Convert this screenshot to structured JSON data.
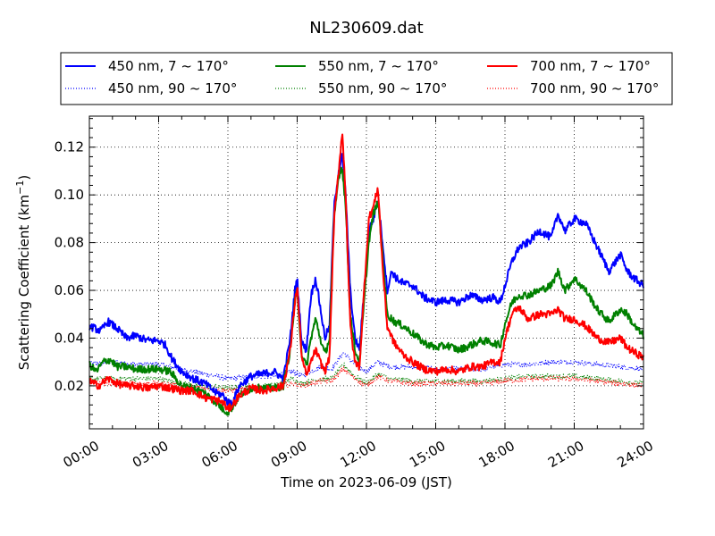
{
  "chart_data": {
    "type": "line",
    "title": "NL230609.dat",
    "xlabel": "Time on 2023-06-09 (JST)",
    "ylabel_main": "Scattering Coefficient (km",
    "ylabel_sup": "−1",
    "ylabel_close": ")",
    "xlim": [
      0,
      24
    ],
    "ylim": [
      0.002,
      0.133
    ],
    "x_ticks": [
      0,
      3,
      6,
      9,
      12,
      15,
      18,
      21,
      24
    ],
    "x_tick_labels": [
      "00:00",
      "03:00",
      "06:00",
      "09:00",
      "12:00",
      "15:00",
      "18:00",
      "21:00",
      "24:00"
    ],
    "y_ticks": [
      0.02,
      0.04,
      0.06,
      0.08,
      0.1,
      0.12
    ],
    "y_tick_labels": [
      "0.02",
      "0.04",
      "0.06",
      "0.08",
      "0.10",
      "0.12"
    ],
    "grid": true,
    "legend_position": "top",
    "series": [
      {
        "name": "450 nm, 7 ~ 170°",
        "color": "#0000ff",
        "style": "solid",
        "x": [
          0,
          0.5,
          0.8,
          1.2,
          1.6,
          2.0,
          2.5,
          3.0,
          3.3,
          3.6,
          4.0,
          4.5,
          5.0,
          5.5,
          5.8,
          6.0,
          6.2,
          6.5,
          7.0,
          7.5,
          8.0,
          8.4,
          8.7,
          8.9,
          9.0,
          9.2,
          9.4,
          9.6,
          9.8,
          10.0,
          10.2,
          10.4,
          10.6,
          10.8,
          10.95,
          11.1,
          11.3,
          11.5,
          11.7,
          11.9,
          12.1,
          12.3,
          12.5,
          12.7,
          12.9,
          13.1,
          13.3,
          13.6,
          14.0,
          14.5,
          15.0,
          15.5,
          16.0,
          16.5,
          17.0,
          17.5,
          17.8,
          18.0,
          18.3,
          18.6,
          19.0,
          19.5,
          20.0,
          20.3,
          20.6,
          21.0,
          21.5,
          22.0,
          22.5,
          23.0,
          23.3,
          23.6,
          24.0
        ],
        "values": [
          0.045,
          0.043,
          0.047,
          0.044,
          0.04,
          0.041,
          0.039,
          0.039,
          0.037,
          0.031,
          0.026,
          0.023,
          0.021,
          0.017,
          0.016,
          0.013,
          0.013,
          0.02,
          0.024,
          0.025,
          0.026,
          0.023,
          0.04,
          0.06,
          0.065,
          0.038,
          0.035,
          0.058,
          0.065,
          0.053,
          0.04,
          0.045,
          0.095,
          0.11,
          0.117,
          0.1,
          0.06,
          0.04,
          0.035,
          0.06,
          0.085,
          0.09,
          0.098,
          0.08,
          0.06,
          0.068,
          0.065,
          0.063,
          0.062,
          0.057,
          0.055,
          0.056,
          0.055,
          0.058,
          0.056,
          0.057,
          0.055,
          0.062,
          0.072,
          0.078,
          0.08,
          0.085,
          0.082,
          0.092,
          0.085,
          0.09,
          0.088,
          0.078,
          0.068,
          0.075,
          0.068,
          0.065,
          0.062
        ]
      },
      {
        "name": "450 nm, 90 ~ 170°",
        "color": "#0000ff",
        "style": "dotted",
        "x": [
          0,
          1,
          2,
          3,
          4,
          5,
          6,
          7,
          8,
          8.8,
          9.2,
          9.6,
          10.0,
          10.5,
          11.0,
          11.5,
          12.0,
          12.5,
          13.0,
          14.0,
          15.0,
          16.0,
          17.0,
          18.0,
          19.0,
          20.0,
          21.0,
          22.0,
          23.0,
          24.0
        ],
        "values": [
          0.029,
          0.03,
          0.029,
          0.029,
          0.027,
          0.025,
          0.023,
          0.024,
          0.024,
          0.026,
          0.024,
          0.026,
          0.028,
          0.027,
          0.034,
          0.029,
          0.026,
          0.03,
          0.028,
          0.028,
          0.027,
          0.027,
          0.027,
          0.029,
          0.029,
          0.03,
          0.03,
          0.029,
          0.028,
          0.027
        ]
      },
      {
        "name": "550 nm, 7 ~ 170°",
        "color": "#008000",
        "style": "solid",
        "x": [
          0,
          0.3,
          0.6,
          0.9,
          1.2,
          1.6,
          2.0,
          2.5,
          3.0,
          3.5,
          4.0,
          4.5,
          5.0,
          5.5,
          5.8,
          6.0,
          6.2,
          6.5,
          7.0,
          7.5,
          8.0,
          8.4,
          8.7,
          8.9,
          9.0,
          9.2,
          9.4,
          9.6,
          9.8,
          10.0,
          10.2,
          10.4,
          10.6,
          10.8,
          10.95,
          11.1,
          11.3,
          11.5,
          11.7,
          11.9,
          12.1,
          12.3,
          12.5,
          12.7,
          12.9,
          13.2,
          13.6,
          14.0,
          14.5,
          15.0,
          15.5,
          16.0,
          16.5,
          17.0,
          17.5,
          17.8,
          18.0,
          18.3,
          18.6,
          19.0,
          19.5,
          20.0,
          20.3,
          20.6,
          21.0,
          21.5,
          22.0,
          22.5,
          23.0,
          23.3,
          23.6,
          24.0
        ],
        "values": [
          0.029,
          0.026,
          0.03,
          0.031,
          0.028,
          0.028,
          0.027,
          0.027,
          0.027,
          0.026,
          0.02,
          0.019,
          0.017,
          0.013,
          0.01,
          0.009,
          0.011,
          0.016,
          0.019,
          0.019,
          0.019,
          0.02,
          0.035,
          0.055,
          0.06,
          0.033,
          0.028,
          0.04,
          0.048,
          0.04,
          0.033,
          0.04,
          0.09,
          0.108,
          0.112,
          0.095,
          0.05,
          0.035,
          0.03,
          0.055,
          0.08,
          0.092,
          0.097,
          0.075,
          0.05,
          0.047,
          0.045,
          0.042,
          0.038,
          0.036,
          0.037,
          0.035,
          0.037,
          0.039,
          0.038,
          0.037,
          0.046,
          0.055,
          0.058,
          0.058,
          0.06,
          0.062,
          0.068,
          0.06,
          0.065,
          0.06,
          0.052,
          0.047,
          0.052,
          0.05,
          0.045,
          0.041
        ]
      },
      {
        "name": "550 nm, 90 ~ 170°",
        "color": "#008000",
        "style": "dotted",
        "x": [
          0,
          1,
          2,
          3,
          4,
          5,
          6,
          7,
          8,
          8.8,
          9.2,
          9.6,
          10.0,
          10.5,
          11.0,
          11.5,
          12.0,
          12.5,
          13.0,
          14.0,
          15.0,
          16.0,
          17.0,
          18.0,
          19.0,
          20.0,
          21.0,
          22.0,
          23.0,
          24.0
        ],
        "values": [
          0.023,
          0.023,
          0.023,
          0.023,
          0.021,
          0.02,
          0.019,
          0.02,
          0.02,
          0.023,
          0.021,
          0.022,
          0.023,
          0.023,
          0.029,
          0.024,
          0.021,
          0.025,
          0.023,
          0.022,
          0.022,
          0.022,
          0.022,
          0.023,
          0.024,
          0.024,
          0.024,
          0.023,
          0.022,
          0.021
        ]
      },
      {
        "name": "700 nm, 7 ~ 170°",
        "color": "#ff0000",
        "style": "solid",
        "x": [
          0,
          0.4,
          0.8,
          1.2,
          1.6,
          2.0,
          2.5,
          3.0,
          3.5,
          4.0,
          4.5,
          5.0,
          5.5,
          5.8,
          6.0,
          6.2,
          6.5,
          7.0,
          7.5,
          8.0,
          8.4,
          8.7,
          8.9,
          9.0,
          9.2,
          9.4,
          9.6,
          9.8,
          10.0,
          10.2,
          10.4,
          10.6,
          10.8,
          10.95,
          11.1,
          11.3,
          11.5,
          11.7,
          11.9,
          12.1,
          12.3,
          12.5,
          12.7,
          12.9,
          13.2,
          13.6,
          14.0,
          14.5,
          15.0,
          15.5,
          16.0,
          16.5,
          17.0,
          17.5,
          17.8,
          18.0,
          18.3,
          18.6,
          19.0,
          19.5,
          20.0,
          20.3,
          20.6,
          21.0,
          21.5,
          22.0,
          22.5,
          23.0,
          23.3,
          23.6,
          24.0
        ],
        "values": [
          0.022,
          0.02,
          0.023,
          0.021,
          0.02,
          0.02,
          0.019,
          0.02,
          0.019,
          0.018,
          0.018,
          0.015,
          0.014,
          0.013,
          0.01,
          0.012,
          0.016,
          0.019,
          0.018,
          0.019,
          0.02,
          0.035,
          0.055,
          0.062,
          0.032,
          0.024,
          0.03,
          0.035,
          0.03,
          0.026,
          0.032,
          0.09,
          0.11,
          0.127,
          0.1,
          0.045,
          0.03,
          0.028,
          0.06,
          0.09,
          0.095,
          0.103,
          0.07,
          0.045,
          0.038,
          0.033,
          0.03,
          0.027,
          0.026,
          0.027,
          0.026,
          0.028,
          0.028,
          0.03,
          0.03,
          0.04,
          0.05,
          0.053,
          0.048,
          0.05,
          0.05,
          0.052,
          0.048,
          0.048,
          0.045,
          0.04,
          0.038,
          0.04,
          0.036,
          0.034,
          0.032
        ]
      },
      {
        "name": "700 nm, 90 ~ 170°",
        "color": "#ff0000",
        "style": "dotted",
        "x": [
          0,
          1,
          2,
          3,
          4,
          5,
          6,
          7,
          8,
          8.8,
          9.2,
          9.6,
          10.0,
          10.5,
          11.0,
          11.5,
          12.0,
          12.5,
          13.0,
          14.0,
          15.0,
          16.0,
          17.0,
          18.0,
          19.0,
          20.0,
          21.0,
          22.0,
          23.0,
          24.0
        ],
        "values": [
          0.021,
          0.021,
          0.021,
          0.021,
          0.02,
          0.019,
          0.018,
          0.019,
          0.019,
          0.021,
          0.02,
          0.021,
          0.022,
          0.022,
          0.027,
          0.023,
          0.02,
          0.024,
          0.022,
          0.021,
          0.021,
          0.021,
          0.021,
          0.022,
          0.023,
          0.023,
          0.023,
          0.022,
          0.021,
          0.02
        ]
      }
    ]
  }
}
